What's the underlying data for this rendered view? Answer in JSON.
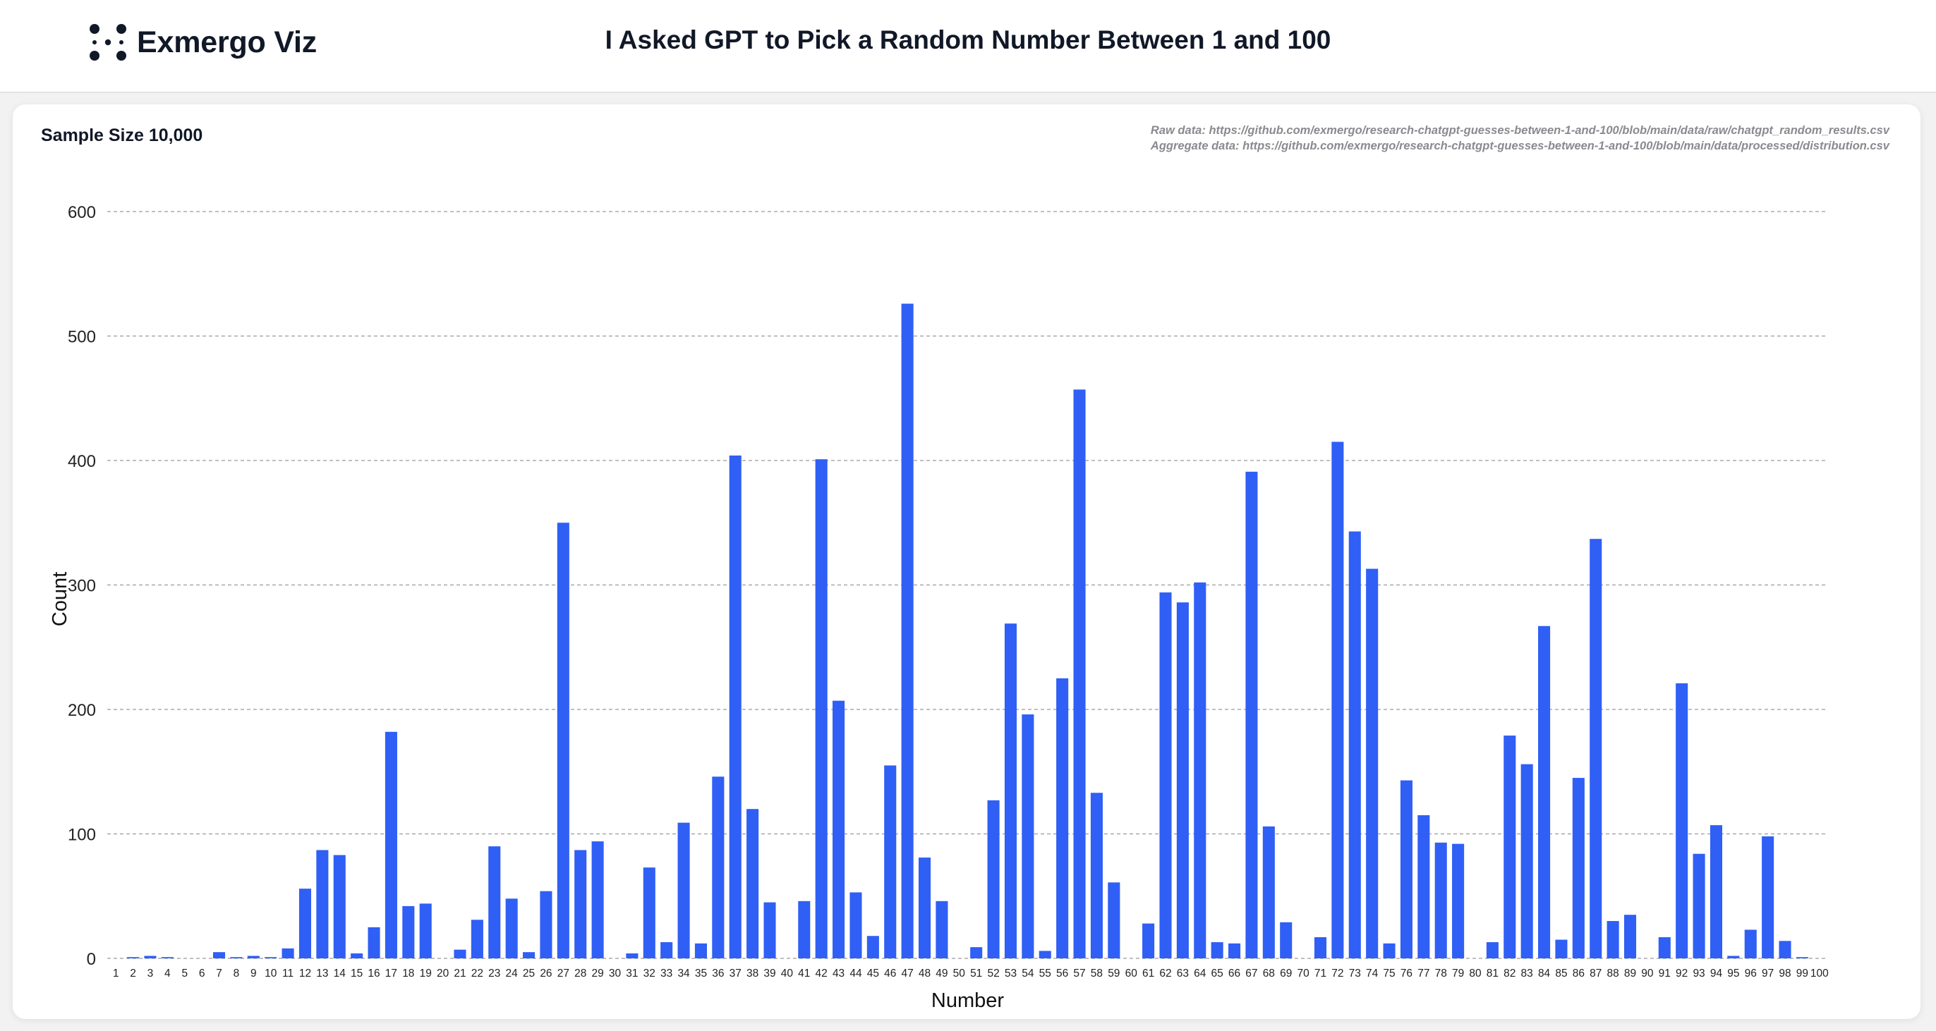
{
  "header": {
    "brand_name": "Exmergo Viz",
    "logo_icon": "dots-grid-icon",
    "page_title": "I Asked GPT to Pick a Random Number Between 1 and 100"
  },
  "card": {
    "sample_size": "Sample Size 10,000",
    "raw_data": "Raw data: https://github.com/exmergo/research-chatgpt-guesses-between-1-and-100/blob/main/data/raw/chatgpt_random_results.csv",
    "aggregate_data": "Aggregate data: https://github.com/exmergo/research-chatgpt-guesses-between-1-and-100/blob/main/data/processed/distribution.csv"
  },
  "colors": {
    "bar": "#2f5ff5",
    "grid": "#9a9a9a"
  },
  "chart_data": {
    "type": "bar",
    "xlabel": "Number",
    "ylabel": "Count",
    "ylim": [
      0,
      600
    ],
    "yticks": [
      0,
      100,
      200,
      300,
      400,
      500,
      600
    ],
    "grid": "horizontal dashed",
    "categories": [
      "1",
      "2",
      "3",
      "4",
      "5",
      "6",
      "7",
      "8",
      "9",
      "10",
      "11",
      "12",
      "13",
      "14",
      "15",
      "16",
      "17",
      "18",
      "19",
      "20",
      "21",
      "22",
      "23",
      "24",
      "25",
      "26",
      "27",
      "28",
      "29",
      "30",
      "31",
      "32",
      "33",
      "34",
      "35",
      "36",
      "37",
      "38",
      "39",
      "40",
      "41",
      "42",
      "43",
      "44",
      "45",
      "46",
      "47",
      "48",
      "49",
      "50",
      "51",
      "52",
      "53",
      "54",
      "55",
      "56",
      "57",
      "58",
      "59",
      "60",
      "61",
      "62",
      "63",
      "64",
      "65",
      "66",
      "67",
      "68",
      "69",
      "70",
      "71",
      "72",
      "73",
      "74",
      "75",
      "76",
      "77",
      "78",
      "79",
      "80",
      "81",
      "82",
      "83",
      "84",
      "85",
      "86",
      "87",
      "88",
      "89",
      "90",
      "91",
      "92",
      "93",
      "94",
      "95",
      "96",
      "97",
      "98",
      "99",
      "100"
    ],
    "values": [
      0,
      1,
      2,
      1,
      0,
      0,
      5,
      1,
      2,
      1,
      8,
      56,
      87,
      83,
      4,
      25,
      182,
      42,
      44,
      0,
      7,
      31,
      90,
      48,
      5,
      54,
      350,
      87,
      94,
      0,
      4,
      73,
      13,
      109,
      12,
      146,
      404,
      120,
      45,
      0,
      46,
      401,
      207,
      53,
      18,
      155,
      526,
      81,
      46,
      0,
      9,
      127,
      269,
      196,
      6,
      225,
      457,
      133,
      61,
      0,
      28,
      294,
      286,
      302,
      13,
      12,
      391,
      106,
      29,
      0,
      17,
      415,
      343,
      313,
      12,
      143,
      115,
      93,
      92,
      0,
      13,
      179,
      156,
      267,
      15,
      145,
      337,
      30,
      35,
      0,
      17,
      221,
      84,
      107,
      2,
      23,
      98,
      14,
      1,
      0
    ]
  }
}
